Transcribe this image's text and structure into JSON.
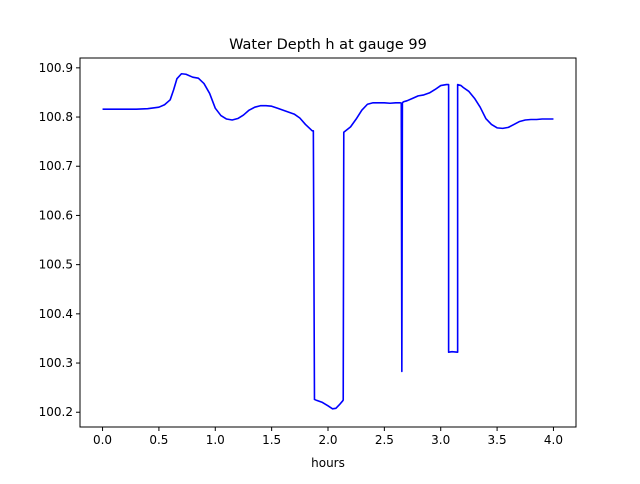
{
  "chart_data": {
    "type": "line",
    "title": "Water Depth h at gauge 99",
    "xlabel": "hours",
    "ylabel": "",
    "xlim": [
      -0.2,
      4.2
    ],
    "ylim": [
      100.17,
      100.92
    ],
    "x_ticks": [
      0.0,
      0.5,
      1.0,
      1.5,
      2.0,
      2.5,
      3.0,
      3.5,
      4.0
    ],
    "x_tick_labels": [
      "0.0",
      "0.5",
      "1.0",
      "1.5",
      "2.0",
      "2.5",
      "3.0",
      "3.5",
      "4.0"
    ],
    "y_ticks": [
      100.2,
      100.3,
      100.4,
      100.5,
      100.6,
      100.7,
      100.8,
      100.9
    ],
    "y_tick_labels": [
      "100.2",
      "100.3",
      "100.4",
      "100.5",
      "100.6",
      "100.7",
      "100.8",
      "100.9"
    ],
    "grid": false,
    "series": [
      {
        "color": "#0000ff",
        "x": [
          0.0,
          0.1,
          0.2,
          0.3,
          0.4,
          0.5,
          0.55,
          0.6,
          0.63,
          0.66,
          0.7,
          0.74,
          0.8,
          0.85,
          0.9,
          0.95,
          1.0,
          1.05,
          1.1,
          1.15,
          1.2,
          1.25,
          1.3,
          1.35,
          1.4,
          1.45,
          1.5,
          1.55,
          1.6,
          1.65,
          1.7,
          1.75,
          1.8,
          1.86,
          1.87,
          1.88,
          1.9,
          1.95,
          2.0,
          2.04,
          2.07,
          2.1,
          2.13,
          2.135,
          2.14,
          2.2,
          2.25,
          2.3,
          2.35,
          2.4,
          2.45,
          2.5,
          2.55,
          2.6,
          2.64,
          2.65,
          2.655,
          2.66,
          2.67,
          2.7,
          2.75,
          2.8,
          2.85,
          2.9,
          2.95,
          3.0,
          3.05,
          3.07,
          3.07,
          3.1,
          3.15,
          3.15,
          3.18,
          3.2,
          3.25,
          3.3,
          3.35,
          3.4,
          3.45,
          3.5,
          3.55,
          3.6,
          3.65,
          3.7,
          3.75,
          3.8,
          3.85,
          3.9,
          3.95,
          4.0
        ],
        "y": [
          100.816,
          100.816,
          100.816,
          100.816,
          100.817,
          100.82,
          100.825,
          100.835,
          100.855,
          100.878,
          100.888,
          100.887,
          100.881,
          100.879,
          100.868,
          100.848,
          100.818,
          100.803,
          100.796,
          100.794,
          100.797,
          100.804,
          100.814,
          100.82,
          100.823,
          100.823,
          100.822,
          100.818,
          100.814,
          100.81,
          100.806,
          100.798,
          100.785,
          100.772,
          100.772,
          100.226,
          100.224,
          100.22,
          100.213,
          100.207,
          100.208,
          100.215,
          100.223,
          100.225,
          100.769,
          100.78,
          100.796,
          100.814,
          100.826,
          100.829,
          100.829,
          100.829,
          100.828,
          100.829,
          100.829,
          100.828,
          100.283,
          100.829,
          100.831,
          100.833,
          100.838,
          100.843,
          100.845,
          100.849,
          100.856,
          100.864,
          100.866,
          100.866,
          100.322,
          100.323,
          100.322,
          100.866,
          100.864,
          100.86,
          100.852,
          100.838,
          100.82,
          100.797,
          100.785,
          100.778,
          100.777,
          100.779,
          100.785,
          100.791,
          100.794,
          100.795,
          100.795,
          100.796,
          100.796,
          100.796
        ]
      }
    ]
  }
}
